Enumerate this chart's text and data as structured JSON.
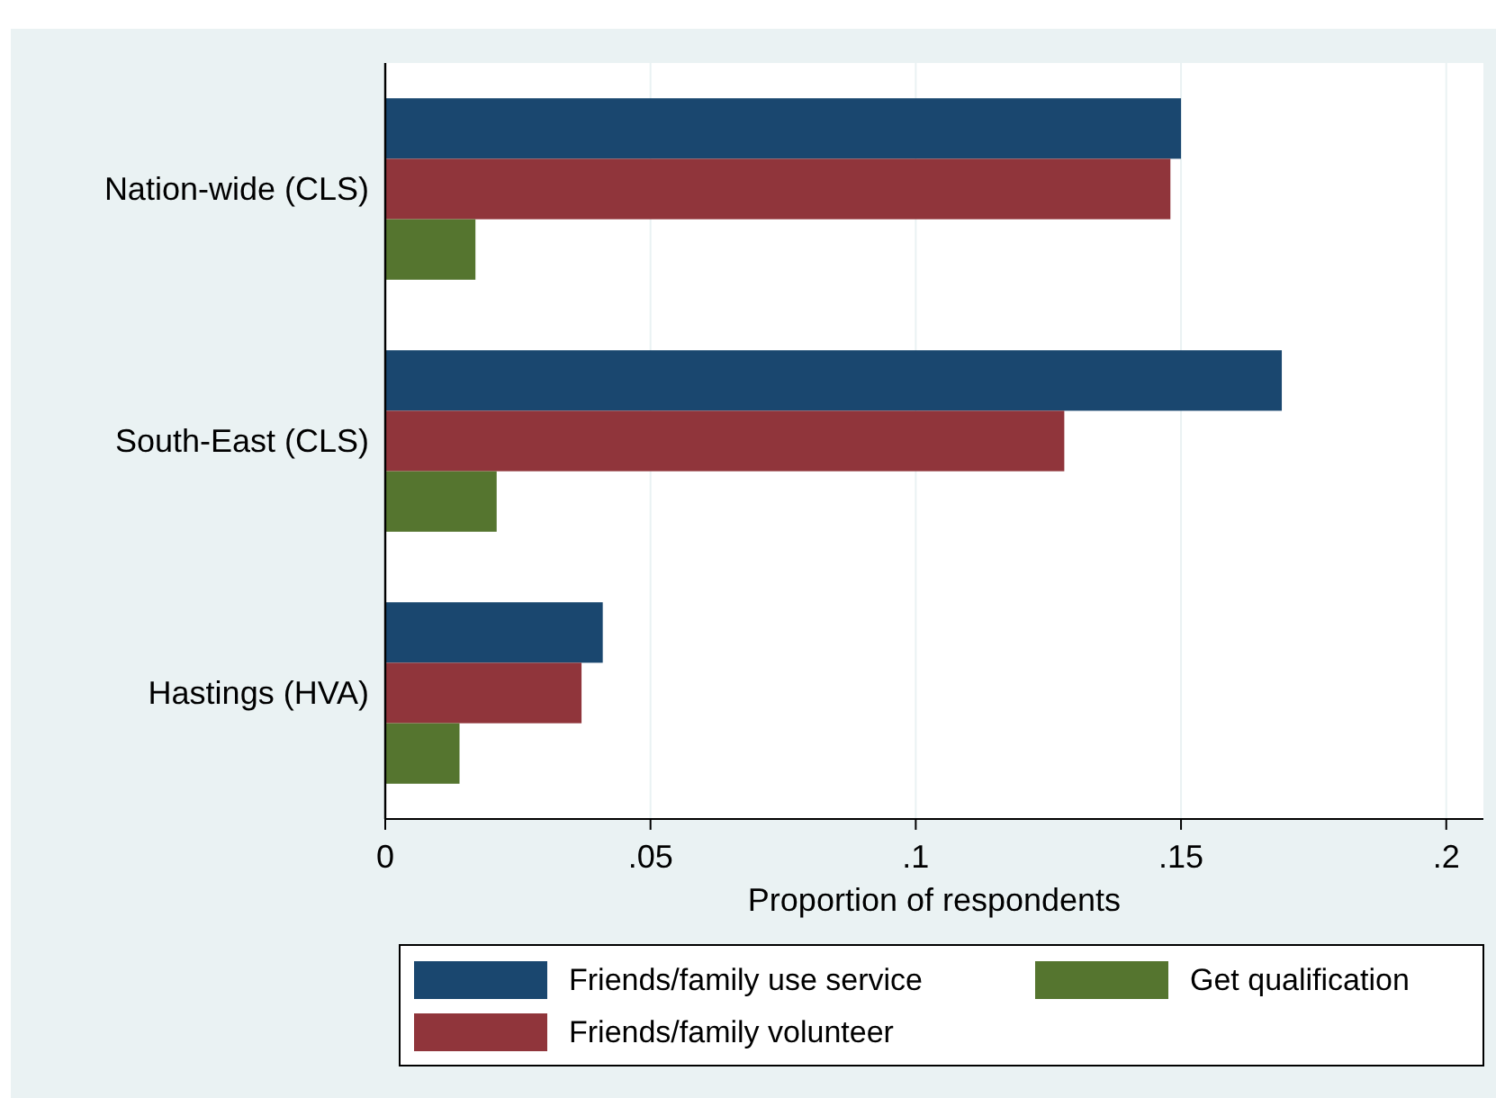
{
  "chart_data": {
    "type": "bar",
    "orientation": "horizontal",
    "xlabel": "Proportion of respondents",
    "categories": [
      "Nation-wide (CLS)",
      "South-East (CLS)",
      "Hastings (HVA)"
    ],
    "series": [
      {
        "name": "Friends/family use service",
        "color": "#1a476f",
        "values": [
          0.15,
          0.169,
          0.041
        ]
      },
      {
        "name": "Friends/family volunteer",
        "color": "#90353b",
        "values": [
          0.148,
          0.128,
          0.037
        ]
      },
      {
        "name": "Get qualification",
        "color": "#55752f",
        "values": [
          0.017,
          0.021,
          0.014
        ]
      }
    ],
    "xlim": [
      0,
      0.207
    ],
    "xticks": [
      0,
      {
        "value": 0.05,
        "label": ".05"
      },
      {
        "value": 0.1,
        "label": ".1"
      },
      {
        "value": 0.15,
        "label": ".15"
      },
      {
        "value": 0.2,
        "label": ".2"
      }
    ],
    "grid": "x",
    "legend": "bottom"
  }
}
